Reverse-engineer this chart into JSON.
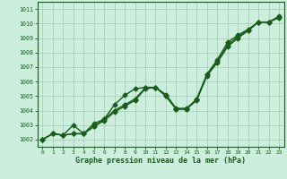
{
  "xlabel": "Graphe pression niveau de la mer (hPa)",
  "bg_color": "#cceedd",
  "grid_color": "#aaccbb",
  "line_color": "#1a5c1a",
  "marker": "D",
  "markersize": 2.5,
  "linewidth": 1.0,
  "xlim": [
    -0.5,
    23.5
  ],
  "ylim": [
    1001.5,
    1011.5
  ],
  "yticks": [
    1002,
    1003,
    1004,
    1005,
    1006,
    1007,
    1008,
    1009,
    1010,
    1011
  ],
  "xticks": [
    0,
    1,
    2,
    3,
    4,
    5,
    6,
    7,
    8,
    9,
    10,
    11,
    12,
    13,
    14,
    15,
    16,
    17,
    18,
    19,
    20,
    21,
    22,
    23
  ],
  "line1": [
    1002.0,
    1002.4,
    1002.3,
    1002.4,
    1002.4,
    1002.9,
    1003.3,
    1003.9,
    1004.3,
    1004.7,
    1005.5,
    1005.6,
    1005.0,
    1004.1,
    1004.1,
    1004.7,
    1006.4,
    1007.3,
    1008.4,
    1009.0,
    1009.5,
    1010.1,
    1010.1,
    1010.4
  ],
  "line2": [
    1002.0,
    1002.4,
    1002.3,
    1002.4,
    1002.4,
    1002.9,
    1003.4,
    1004.0,
    1004.4,
    1004.8,
    1005.55,
    1005.6,
    1005.0,
    1004.1,
    1004.1,
    1004.8,
    1006.5,
    1007.4,
    1008.5,
    1009.1,
    1009.55,
    1010.1,
    1010.1,
    1010.45
  ],
  "line3": [
    1002.0,
    1002.4,
    1002.3,
    1003.0,
    1002.4,
    1003.1,
    1003.4,
    1004.4,
    1005.05,
    1005.5,
    1005.6,
    1005.6,
    1005.1,
    1004.15,
    1004.15,
    1004.75,
    1006.5,
    1007.5,
    1008.7,
    1009.2,
    1009.6,
    1010.1,
    1010.1,
    1010.5
  ]
}
